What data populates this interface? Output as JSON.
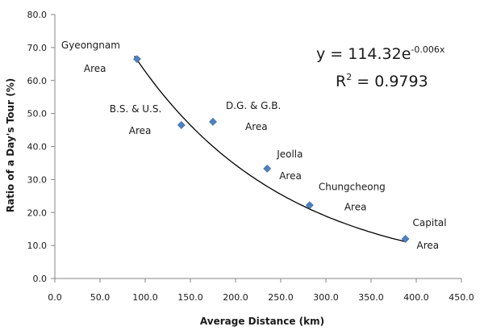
{
  "chart_data": {
    "type": "scatter",
    "title": "",
    "xlabel": "Average Distance (km)",
    "ylabel": "Ratio of a Day's Tour (%)",
    "xlim": [
      0,
      450
    ],
    "ylim": [
      0,
      80
    ],
    "x_ticks": [
      "0.0",
      "50.0",
      "100.0",
      "150.0",
      "200.0",
      "250.0",
      "300.0",
      "350.0",
      "400.0",
      "450.0"
    ],
    "y_ticks": [
      "0.0",
      "10.0",
      "20.0",
      "30.0",
      "40.0",
      "50.0",
      "60.0",
      "70.0",
      "80.0"
    ],
    "grid": false,
    "marker_color": "#4f81bd",
    "points": [
      {
        "x": 91,
        "y": 66.5,
        "label": [
          "Gyeongnam",
          "Area"
        ]
      },
      {
        "x": 140,
        "y": 46.5,
        "label": [
          "B.S. & U.S.",
          "Area"
        ]
      },
      {
        "x": 175,
        "y": 47.5,
        "label": [
          "D.G. & G.B.",
          "Area"
        ]
      },
      {
        "x": 235,
        "y": 33.3,
        "label": [
          "Jeolla",
          "Area"
        ]
      },
      {
        "x": 282,
        "y": 22.2,
        "label": [
          "Chungcheong",
          "Area"
        ]
      },
      {
        "x": 388,
        "y": 12.0,
        "label": [
          "Capital",
          "Area"
        ]
      }
    ],
    "trendline": {
      "type": "exponential",
      "a": 114.32,
      "b": -0.006,
      "x_range": [
        88,
        388
      ],
      "equation_base": "y = 114.32e",
      "equation_exp": "-0.006x",
      "r2_base": "R",
      "r2_sup": "2",
      "r2_value": " = 0.9793"
    }
  }
}
